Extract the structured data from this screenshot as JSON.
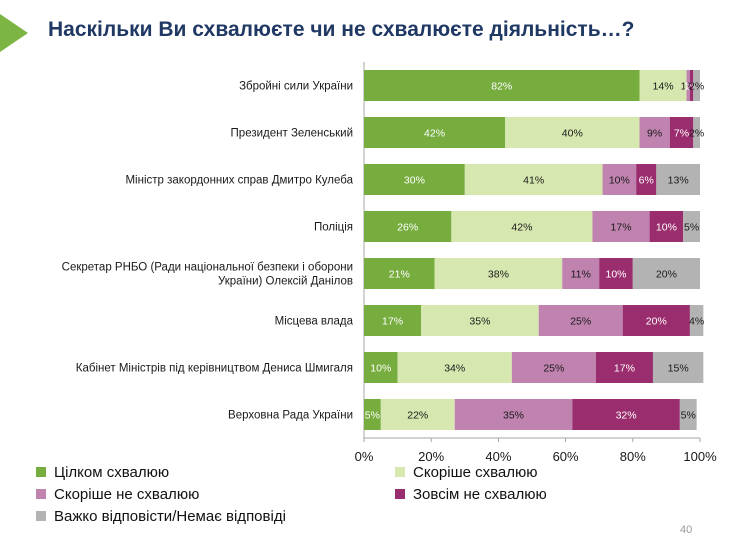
{
  "header": {
    "title": "Наскільки Ви схвалюєте чи не схвалюєте діяльність…?"
  },
  "page_number": "40",
  "colors": {
    "accent": "#7db545",
    "title": "#1f3864",
    "series": [
      "#77ac3f",
      "#d6e7b0",
      "#c083b0",
      "#9a2d6e",
      "#b3b3b3"
    ]
  },
  "chart_data": {
    "type": "bar",
    "orientation": "horizontal",
    "stacked": true,
    "title": "Наскільки Ви схвалюєте чи не схвалюєте діяльність…?",
    "xlabel": "",
    "ylabel": "",
    "xlim": [
      0,
      100
    ],
    "x_ticks": [
      "0%",
      "20%",
      "40%",
      "60%",
      "80%",
      "100%"
    ],
    "categories": [
      [
        "Збройні сили України"
      ],
      [
        "Президент Зеленський"
      ],
      [
        "Міністр закордонних справ Дмитро Кулеба"
      ],
      [
        "Поліція"
      ],
      [
        "Секретар РНБО (Ради національної безпеки і оборони",
        "України) Олексій Данілов"
      ],
      [
        "Місцева влада"
      ],
      [
        "Кабінет Міністрів під керівництвом Дениса Шмигаля"
      ],
      [
        "Верховна Рада України"
      ]
    ],
    "series": [
      {
        "name": "Цілком схвалюю",
        "values": [
          82,
          42,
          30,
          26,
          21,
          17,
          10,
          5
        ]
      },
      {
        "name": "Скоріше схвалюю",
        "values": [
          14,
          40,
          41,
          42,
          38,
          35,
          34,
          22
        ]
      },
      {
        "name": "Скоріше не схвалюю",
        "values": [
          1,
          9,
          10,
          17,
          11,
          25,
          25,
          35
        ]
      },
      {
        "name": "Зовсім не схвалюю",
        "values": [
          1,
          7,
          6,
          10,
          10,
          20,
          17,
          32
        ]
      },
      {
        "name": "Важко відповісти/Немає відповіді",
        "values": [
          2,
          2,
          13,
          5,
          20,
          4,
          15,
          5
        ]
      }
    ],
    "value_suffix": "%"
  }
}
